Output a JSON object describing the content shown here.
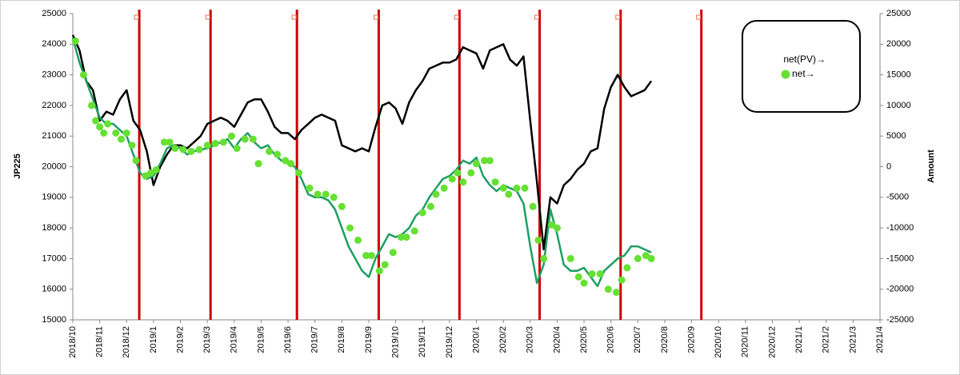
{
  "chart_data": {
    "type": "line",
    "ylabel": "JP225",
    "y2label": "Amount",
    "xlim": [
      0,
      30
    ],
    "xticks": [
      {
        "value": 0,
        "label": "2018/10"
      },
      {
        "value": 1,
        "label": "2018/11"
      },
      {
        "value": 2,
        "label": "2018/12"
      },
      {
        "value": 3,
        "label": "2019/1"
      },
      {
        "value": 4,
        "label": "2019/2"
      },
      {
        "value": 5,
        "label": "2019/3"
      },
      {
        "value": 6,
        "label": "2019/4"
      },
      {
        "value": 7,
        "label": "2019/5"
      },
      {
        "value": 8,
        "label": "2019/6"
      },
      {
        "value": 9,
        "label": "2019/7"
      },
      {
        "value": 10,
        "label": "2019/8"
      },
      {
        "value": 11,
        "label": "2019/9"
      },
      {
        "value": 12,
        "label": "2019/10"
      },
      {
        "value": 13,
        "label": "2019/11"
      },
      {
        "value": 14,
        "label": "2019/12"
      },
      {
        "value": 15,
        "label": "2020/1"
      },
      {
        "value": 16,
        "label": "2020/2"
      },
      {
        "value": 17,
        "label": "2020/3"
      },
      {
        "value": 18,
        "label": "2020/4"
      },
      {
        "value": 19,
        "label": "2020/5"
      },
      {
        "value": 20,
        "label": "2020/6"
      },
      {
        "value": 21,
        "label": "2020/7"
      },
      {
        "value": 22,
        "label": "2020/8"
      },
      {
        "value": 23,
        "label": "2020/9"
      },
      {
        "value": 24,
        "label": "2020/10"
      },
      {
        "value": 25,
        "label": "2020/11"
      },
      {
        "value": 26,
        "label": "2020/12"
      },
      {
        "value": 27,
        "label": "2021/1"
      },
      {
        "value": 28,
        "label": "2021/2"
      },
      {
        "value": 29,
        "label": "2021/3"
      },
      {
        "value": 30,
        "label": "2021/4"
      }
    ],
    "ylim": [
      15000,
      25000
    ],
    "yticks": [
      15000,
      16000,
      17000,
      18000,
      19000,
      20000,
      21000,
      22000,
      23000,
      24000,
      25000
    ],
    "y2lim": [
      -25000,
      25000
    ],
    "y2ticks": [
      -25000,
      -20000,
      -15000,
      -10000,
      -5000,
      0,
      5000,
      10000,
      15000,
      20000,
      25000
    ],
    "vlines": {
      "color": "#cc0000",
      "x": [
        2.47,
        5.12,
        8.33,
        11.37,
        14.37,
        17.35,
        20.36,
        23.36
      ]
    },
    "series": [
      {
        "color": "#000000",
        "type": "line",
        "x": [
          0,
          0.25,
          0.5,
          0.75,
          1,
          1.25,
          1.5,
          1.75,
          2,
          2.25,
          2.5,
          2.75,
          3,
          3.25,
          3.5,
          3.75,
          4,
          4.25,
          4.5,
          4.75,
          5,
          5.25,
          5.5,
          5.75,
          6,
          6.25,
          6.5,
          6.75,
          7,
          7.25,
          7.5,
          7.75,
          8,
          8.25,
          8.5,
          8.75,
          9,
          9.25,
          9.5,
          9.75,
          10,
          10.25,
          10.5,
          10.75,
          11,
          11.25,
          11.5,
          11.75,
          12,
          12.25,
          12.5,
          12.75,
          13,
          13.25,
          13.5,
          13.75,
          14,
          14.25,
          14.5,
          14.75,
          15,
          15.25,
          15.5,
          15.75,
          16,
          16.25,
          16.5,
          16.75,
          17,
          17.25,
          17.5,
          17.75,
          18,
          18.25,
          18.5,
          18.75,
          19,
          19.25,
          19.5,
          19.75,
          20,
          20.25,
          20.5,
          20.75,
          21,
          21.25,
          21.5
        ],
        "values": [
          24300,
          23800,
          22800,
          22500,
          21500,
          21800,
          21700,
          22200,
          22500,
          21500,
          21200,
          20500,
          19400,
          20000,
          20400,
          20700,
          20700,
          20600,
          20800,
          21000,
          21400,
          21500,
          21600,
          21500,
          21300,
          21700,
          22100,
          22200,
          22200,
          21800,
          21300,
          21100,
          21100,
          20900,
          21200,
          21400,
          21600,
          21700,
          21600,
          21500,
          20700,
          20600,
          20500,
          20600,
          20500,
          21300,
          22000,
          22100,
          21900,
          21400,
          22100,
          22500,
          22800,
          23200,
          23300,
          23400,
          23400,
          23500,
          23900,
          23800,
          23700,
          23200,
          23800,
          23900,
          24000,
          23500,
          23300,
          23600,
          21500,
          19500,
          17300,
          19000,
          18800,
          19400,
          19600,
          19900,
          20100,
          20500,
          20600,
          21900,
          22600,
          23000,
          22600,
          22300,
          22400,
          22500,
          22800
        ]
      },
      {
        "name": "net(PV)→",
        "color": "#1f9e63",
        "axis": "y2",
        "type": "line",
        "x": [
          0,
          0.25,
          0.5,
          0.75,
          1,
          1.25,
          1.5,
          1.75,
          2,
          2.25,
          2.5,
          2.75,
          3,
          3.25,
          3.5,
          3.75,
          4,
          4.25,
          4.5,
          4.75,
          5,
          5.25,
          5.5,
          5.75,
          6,
          6.25,
          6.5,
          6.75,
          7,
          7.25,
          7.5,
          7.75,
          8,
          8.25,
          8.5,
          8.75,
          9,
          9.25,
          9.5,
          9.75,
          10,
          10.25,
          10.5,
          10.75,
          11,
          11.25,
          11.5,
          11.75,
          12,
          12.25,
          12.5,
          12.75,
          13,
          13.25,
          13.5,
          13.75,
          14,
          14.25,
          14.5,
          14.75,
          15,
          15.25,
          15.5,
          15.75,
          16,
          16.25,
          16.5,
          16.75,
          17,
          17.25,
          17.5,
          17.75,
          18,
          18.25,
          18.5,
          18.75,
          19,
          19.25,
          19.5,
          19.75,
          20,
          20.25,
          20.5,
          20.75,
          21,
          21.25,
          21.5
        ],
        "values": [
          21000,
          17000,
          14000,
          11000,
          8000,
          7000,
          7000,
          6000,
          5000,
          2000,
          -1000,
          -2000,
          -1500,
          500,
          3000,
          3500,
          3000,
          2000,
          2500,
          2800,
          3000,
          3500,
          4000,
          4500,
          3000,
          4500,
          5500,
          4000,
          3000,
          3500,
          2000,
          1000,
          500,
          0,
          -2000,
          -4500,
          -5000,
          -5000,
          -5500,
          -7000,
          -10000,
          -13000,
          -15000,
          -17000,
          -18000,
          -15000,
          -13000,
          -11000,
          -11500,
          -11000,
          -10000,
          -8000,
          -7000,
          -5000,
          -3500,
          -2000,
          -1500,
          -500,
          1000,
          500,
          1500,
          -1500,
          -3000,
          -4000,
          -3000,
          -3500,
          -4000,
          -6000,
          -13000,
          -19000,
          -16000,
          -7000,
          -11000,
          -16000,
          -17000,
          -17000,
          -16500,
          -18000,
          -19500,
          -17000,
          -16000,
          -15000,
          -14500,
          -13000,
          -13000,
          -13500,
          -14000
        ]
      },
      {
        "name": "net→",
        "color": "#66e033",
        "axis": "y2",
        "type": "scatter",
        "x": [
          0.1,
          0.4,
          0.7,
          0.85,
          1,
          1.15,
          1.3,
          1.6,
          1.8,
          2,
          2.2,
          2.35,
          2.7,
          2.9,
          3.1,
          3.4,
          3.6,
          3.8,
          4.1,
          4.4,
          4.7,
          5,
          5.3,
          5.6,
          5.9,
          6.1,
          6.4,
          6.7,
          6.9,
          7.3,
          7.6,
          7.9,
          8.1,
          8.4,
          8.8,
          9.1,
          9.4,
          9.7,
          10,
          10.3,
          10.6,
          10.9,
          11.1,
          11.4,
          11.6,
          11.9,
          12.2,
          12.4,
          12.7,
          13,
          13.3,
          13.5,
          13.8,
          14.1,
          14.3,
          14.5,
          14.8,
          15,
          15.3,
          15.5,
          15.7,
          16,
          16.2,
          16.5,
          16.8,
          17.1,
          17.3,
          17.5,
          17.8,
          18,
          18.5,
          18.8,
          19,
          19.3,
          19.6,
          19.9,
          20.2,
          20.4,
          20.6,
          21,
          21.3,
          21.5
        ],
        "values": [
          20500,
          15000,
          10000,
          7500,
          6500,
          5500,
          7000,
          5500,
          4500,
          5500,
          3500,
          1000,
          -1500,
          -1000,
          -500,
          4000,
          4000,
          3000,
          2800,
          2500,
          2800,
          3500,
          3800,
          4000,
          5000,
          3000,
          4500,
          4500,
          500,
          2500,
          2000,
          1000,
          500,
          -1000,
          -3500,
          -4500,
          -4500,
          -5000,
          -6500,
          -10000,
          -12000,
          -14500,
          -14500,
          -17000,
          -16000,
          -14000,
          -11500,
          -11500,
          -10500,
          -7500,
          -6500,
          -4500,
          -3500,
          -2000,
          -1000,
          -2500,
          -1000,
          500,
          1000,
          1000,
          -2500,
          -3500,
          -4500,
          -3500,
          -3500,
          -6500,
          -12000,
          -15000,
          -9500,
          -10000,
          -15000,
          -18000,
          -19000,
          -17500,
          -17500,
          -20000,
          -20500,
          -18500,
          -16500,
          -15000,
          -14500,
          -15000
        ]
      }
    ]
  }
}
